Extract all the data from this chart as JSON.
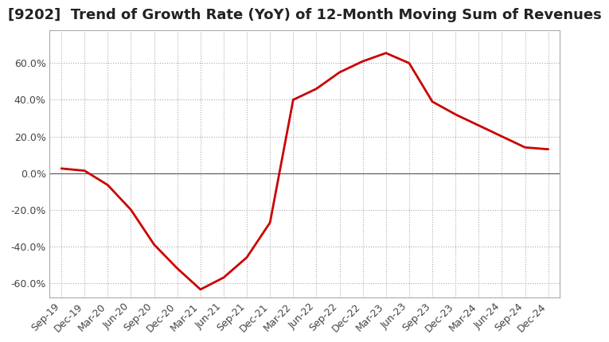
{
  "title": "[9202]  Trend of Growth Rate (YoY) of 12-Month Moving Sum of Revenues",
  "title_fontsize": 13,
  "line_color": "#cc0000",
  "background_color": "#ffffff",
  "grid_color": "#aaaaaa",
  "ylim": [
    -0.68,
    0.78
  ],
  "yticks": [
    -0.6,
    -0.4,
    -0.2,
    0.0,
    0.2,
    0.4,
    0.6
  ],
  "ytick_labels": [
    "-60.0%",
    "-40.0%",
    "-20.0%",
    "0.0%",
    "20.0%",
    "40.0%",
    "60.0%"
  ],
  "x_labels": [
    "Sep-19",
    "Dec-19",
    "Mar-20",
    "Jun-20",
    "Sep-20",
    "Dec-20",
    "Mar-21",
    "Jun-21",
    "Sep-21",
    "Dec-21",
    "Mar-22",
    "Jun-22",
    "Sep-22",
    "Dec-22",
    "Mar-23",
    "Jun-23",
    "Sep-23",
    "Dec-23",
    "Mar-24",
    "Jun-24",
    "Sep-24",
    "Dec-24"
  ],
  "data_x": [
    0,
    1,
    2,
    3,
    4,
    5,
    6,
    7,
    8,
    9,
    10,
    11,
    12,
    13,
    14,
    15,
    16,
    17,
    18,
    19,
    20,
    21
  ],
  "data_y": [
    0.025,
    0.013,
    -0.065,
    -0.2,
    -0.39,
    -0.52,
    -0.635,
    -0.57,
    -0.46,
    -0.27,
    0.4,
    0.46,
    0.55,
    0.61,
    0.655,
    0.6,
    0.39,
    0.32,
    0.26,
    0.2,
    0.14,
    0.13
  ],
  "tick_fontsize": 9,
  "axis_color": "#444444",
  "line_width": 2.0,
  "zero_line_color": "#555555"
}
